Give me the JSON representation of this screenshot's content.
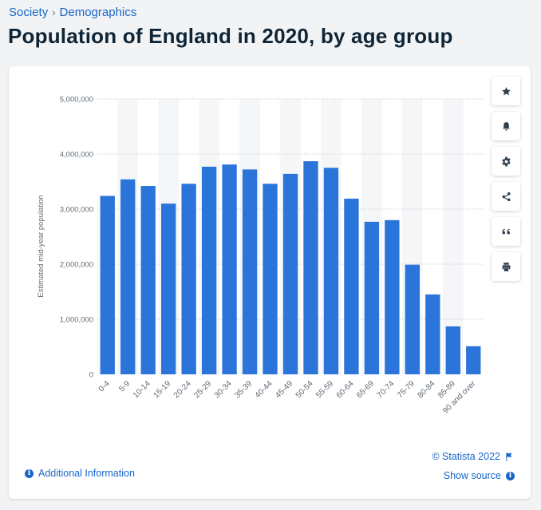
{
  "breadcrumb": {
    "parent": "Society",
    "separator": "›",
    "current": "Demographics"
  },
  "title": "Population of England in 2020, by age group",
  "toolbar": {
    "icons": [
      "star-icon",
      "bell-icon",
      "gear-icon",
      "share-icon",
      "quote-icon",
      "print-icon"
    ]
  },
  "footer": {
    "additional_info": "Additional Information",
    "copyright": "© Statista 2022",
    "show_source": "Show source"
  },
  "colors": {
    "bar": "#2b74da",
    "link": "#1a66c8",
    "band": "#f5f6f8",
    "grid": "#c9cdd2"
  },
  "chart_data": {
    "type": "bar",
    "ylabel": "Estimated mid-year population",
    "xlabel": "",
    "ylim": [
      0,
      5000000
    ],
    "y_ticks": [
      0,
      1000000,
      2000000,
      3000000,
      4000000,
      5000000
    ],
    "y_tick_labels": [
      "0",
      "1,000,000",
      "2,000,000",
      "3,000,000",
      "4,000,000",
      "5,000,000"
    ],
    "grid": true,
    "categories": [
      "0-4",
      "5-9",
      "10-14",
      "15-19",
      "20-24",
      "25-29",
      "30-34",
      "35-39",
      "40-44",
      "45-49",
      "50-54",
      "55-59",
      "60-64",
      "65-69",
      "70-74",
      "75-79",
      "80-84",
      "85-89",
      "90 and over"
    ],
    "values": [
      3240000,
      3540000,
      3420000,
      3100000,
      3460000,
      3770000,
      3810000,
      3720000,
      3460000,
      3640000,
      3870000,
      3750000,
      3190000,
      2770000,
      2800000,
      1990000,
      1450000,
      870000,
      510000
    ]
  }
}
